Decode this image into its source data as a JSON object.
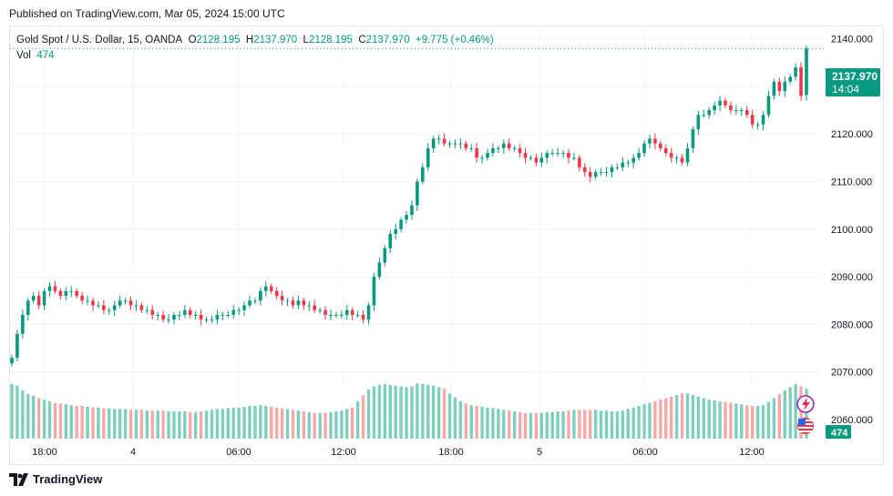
{
  "header": {
    "published": "Published on TradingView.com, Mar 05, 2024 15:00 UTC"
  },
  "legend": {
    "symbol": "Gold Spot / U.S. Dollar, 15, OANDA",
    "o_label": "O",
    "o_value": "2128.195",
    "h_label": "H",
    "h_value": "2137.970",
    "l_label": "L",
    "l_value": "2128.195",
    "c_label": "C",
    "c_value": "2137.970",
    "change": "+9.775 (+0.46%)",
    "vol_label": "Vol",
    "vol_value": "474"
  },
  "price_badge": {
    "price": "2137.970",
    "countdown": "14:04"
  },
  "volume_badge": "474",
  "footer": {
    "brand": "TradingView"
  },
  "colors": {
    "up": "#089981",
    "down": "#f23645",
    "up_vol": "#7fcfbf",
    "down_vol": "#f7a9a7",
    "grid": "#f0f3fa"
  },
  "chart_data": {
    "type": "candlestick",
    "y_ticks": [
      "2140.000",
      "2130.000",
      "2120.000",
      "2110.000",
      "2100.000",
      "2090.000",
      "2080.000",
      "2070.000",
      "2060.000"
    ],
    "x_ticks": [
      "18:00",
      "4",
      "06:00",
      "12:00",
      "18:00",
      "5",
      "06:00",
      "12:00"
    ],
    "ylim": [
      2055.8,
      2142.6
    ],
    "last_price": 2137.97,
    "closes": [
      2073,
      2078,
      2082,
      2085,
      2086,
      2084,
      2087,
      2088,
      2087,
      2086,
      2087,
      2087,
      2086,
      2085,
      2085,
      2084,
      2084,
      2083,
      2083,
      2084,
      2085,
      2085,
      2084,
      2084,
      2083,
      2083,
      2082,
      2082,
      2081,
      2081,
      2082,
      2082,
      2083,
      2082,
      2082,
      2081,
      2081,
      2081,
      2082,
      2082,
      2082,
      2083,
      2083,
      2084,
      2085,
      2085,
      2087,
      2088,
      2087,
      2086,
      2085,
      2085,
      2084,
      2085,
      2084,
      2084,
      2083,
      2083,
      2082,
      2082,
      2082,
      2082,
      2083,
      2082,
      2082,
      2081,
      2084,
      2090,
      2093,
      2096,
      2099,
      2100,
      2102,
      2103,
      2105,
      2110,
      2113,
      2117,
      2119,
      2119,
      2118,
      2118,
      2118,
      2118,
      2117,
      2117,
      2115,
      2115,
      2116,
      2117,
      2117,
      2118,
      2117,
      2117,
      2116,
      2115,
      2115,
      2114,
      2115,
      2116,
      2116,
      2116,
      2116,
      2115,
      2115,
      2113,
      2112,
      2111,
      2112,
      2112,
      2112,
      2113,
      2113,
      2114,
      2114,
      2115,
      2116,
      2118,
      2119,
      2118,
      2117,
      2116,
      2115,
      2115,
      2114,
      2117,
      2121,
      2124,
      2124,
      2125,
      2126,
      2127,
      2126,
      2125,
      2125,
      2125,
      2124,
      2122,
      2122,
      2124,
      2128,
      2131,
      2129,
      2131,
      2132,
      2134,
      2128,
      2137.97
    ],
    "volumes": [
      70,
      68,
      62,
      57,
      55,
      52,
      50,
      48,
      46,
      45,
      44,
      43,
      42,
      42,
      41,
      40,
      40,
      39,
      39,
      38,
      38,
      38,
      37,
      37,
      37,
      36,
      36,
      36,
      36,
      35,
      35,
      35,
      35,
      34,
      34,
      35,
      36,
      37,
      38,
      38,
      39,
      40,
      40,
      41,
      42,
      42,
      43,
      42,
      41,
      40,
      39,
      38,
      37,
      36,
      35,
      34,
      33,
      33,
      33,
      34,
      35,
      36,
      38,
      40,
      48,
      56,
      63,
      67,
      69,
      70,
      69,
      68,
      67,
      66,
      67,
      71,
      70,
      69,
      68,
      66,
      64,
      58,
      53,
      48,
      45,
      43,
      42,
      41,
      40,
      39,
      38,
      37,
      36,
      35,
      34,
      33,
      33,
      33,
      33,
      34,
      34,
      35,
      35,
      36,
      37,
      37,
      37,
      37,
      37,
      36,
      36,
      35,
      35,
      36,
      38,
      40,
      42,
      44,
      46,
      48,
      50,
      52,
      54,
      56,
      58,
      58,
      56,
      54,
      52,
      50,
      49,
      48,
      47,
      46,
      45,
      44,
      43,
      42,
      42,
      43,
      47,
      52,
      57,
      62,
      66,
      70,
      67,
      64
    ]
  }
}
